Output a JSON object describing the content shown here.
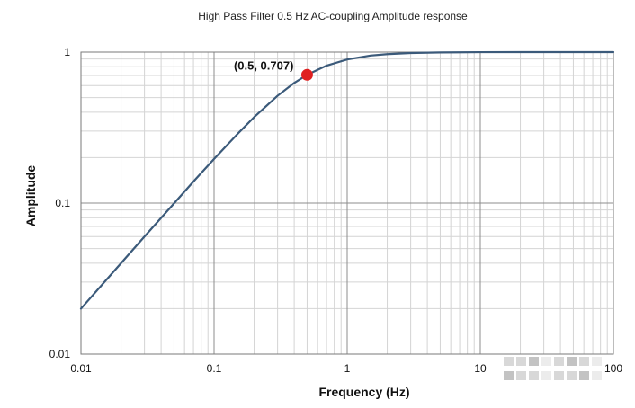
{
  "chart_data": {
    "type": "line",
    "title": "High Pass Filter 0.5 Hz AC-coupling Amplitude response",
    "xlabel": "Frequency (Hz)",
    "ylabel": "Amplitude",
    "x_scale": "log",
    "y_scale": "log",
    "xlim": [
      0.01,
      100
    ],
    "ylim": [
      0.01,
      1
    ],
    "x_ticks": [
      {
        "value": 0.01,
        "label": "0.01"
      },
      {
        "value": 0.1,
        "label": "0.1"
      },
      {
        "value": 1,
        "label": "1"
      },
      {
        "value": 10,
        "label": "10"
      },
      {
        "value": 100,
        "label": "100"
      }
    ],
    "y_ticks": [
      {
        "value": 0.01,
        "label": "0.01"
      },
      {
        "value": 0.1,
        "label": "0.1"
      },
      {
        "value": 1,
        "label": "1"
      }
    ],
    "grid": true,
    "series": [
      {
        "color": "#3b5a7a",
        "x": [
          0.01,
          0.02,
          0.03,
          0.05,
          0.07,
          0.1,
          0.15,
          0.2,
          0.3,
          0.4,
          0.5,
          0.7,
          1,
          1.5,
          2,
          3,
          5,
          10,
          20,
          50,
          100
        ],
        "y": [
          0.02,
          0.04,
          0.06,
          0.0995,
          0.139,
          0.196,
          0.287,
          0.371,
          0.514,
          0.625,
          0.707,
          0.814,
          0.894,
          0.949,
          0.97,
          0.986,
          0.995,
          0.999,
          1.0,
          1.0,
          1.0
        ]
      }
    ],
    "annotations": [
      {
        "x": 0.5,
        "y": 0.707,
        "label": "(0.5, 0.707)",
        "marker_color": "#e02020"
      }
    ]
  }
}
